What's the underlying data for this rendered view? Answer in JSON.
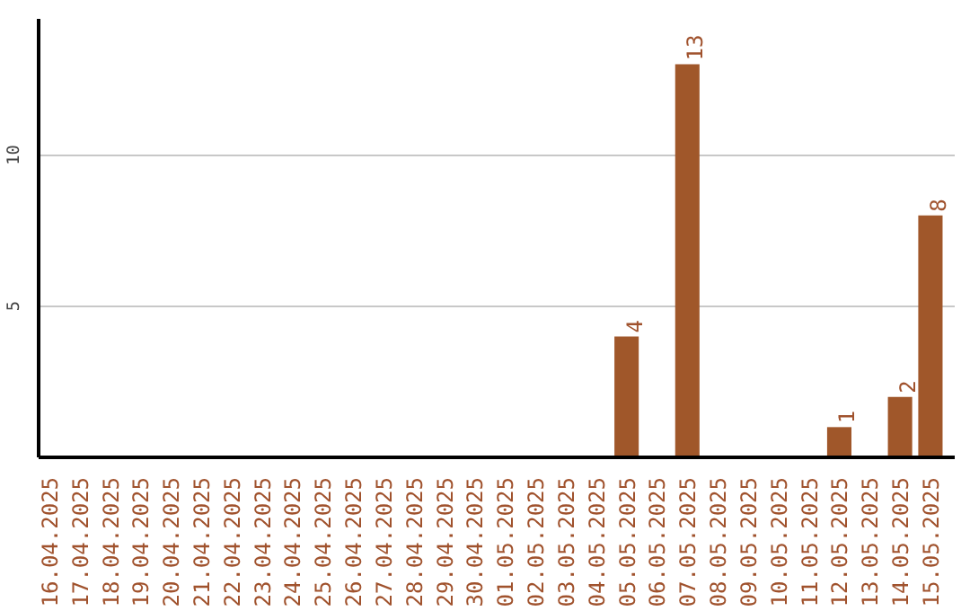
{
  "chart_data": {
    "type": "bar",
    "categories": [
      "16.04.2025",
      "17.04.2025",
      "18.04.2025",
      "19.04.2025",
      "20.04.2025",
      "21.04.2025",
      "22.04.2025",
      "23.04.2025",
      "24.04.2025",
      "25.04.2025",
      "26.04.2025",
      "27.04.2025",
      "28.04.2025",
      "29.04.2025",
      "30.04.2025",
      "01.05.2025",
      "02.05.2025",
      "03.05.2025",
      "04.05.2025",
      "05.05.2025",
      "06.05.2025",
      "07.05.2025",
      "08.05.2025",
      "09.05.2025",
      "10.05.2025",
      "11.05.2025",
      "12.05.2025",
      "13.05.2025",
      "14.05.2025",
      "15.05.2025"
    ],
    "values": [
      0,
      0,
      0,
      0,
      0,
      0,
      0,
      0,
      0,
      0,
      0,
      0,
      0,
      0,
      0,
      0,
      0,
      0,
      0,
      4,
      0,
      13,
      0,
      0,
      0,
      0,
      1,
      0,
      2,
      8
    ],
    "value_labels": [
      null,
      null,
      null,
      null,
      null,
      null,
      null,
      null,
      null,
      null,
      null,
      null,
      null,
      null,
      null,
      null,
      null,
      null,
      null,
      "4",
      null,
      "13",
      null,
      null,
      null,
      null,
      "1",
      null,
      "2",
      "8"
    ],
    "color": "#a0572a",
    "ylim": [
      0,
      14.5
    ],
    "yticks": [
      5,
      10
    ],
    "grid": "y"
  }
}
